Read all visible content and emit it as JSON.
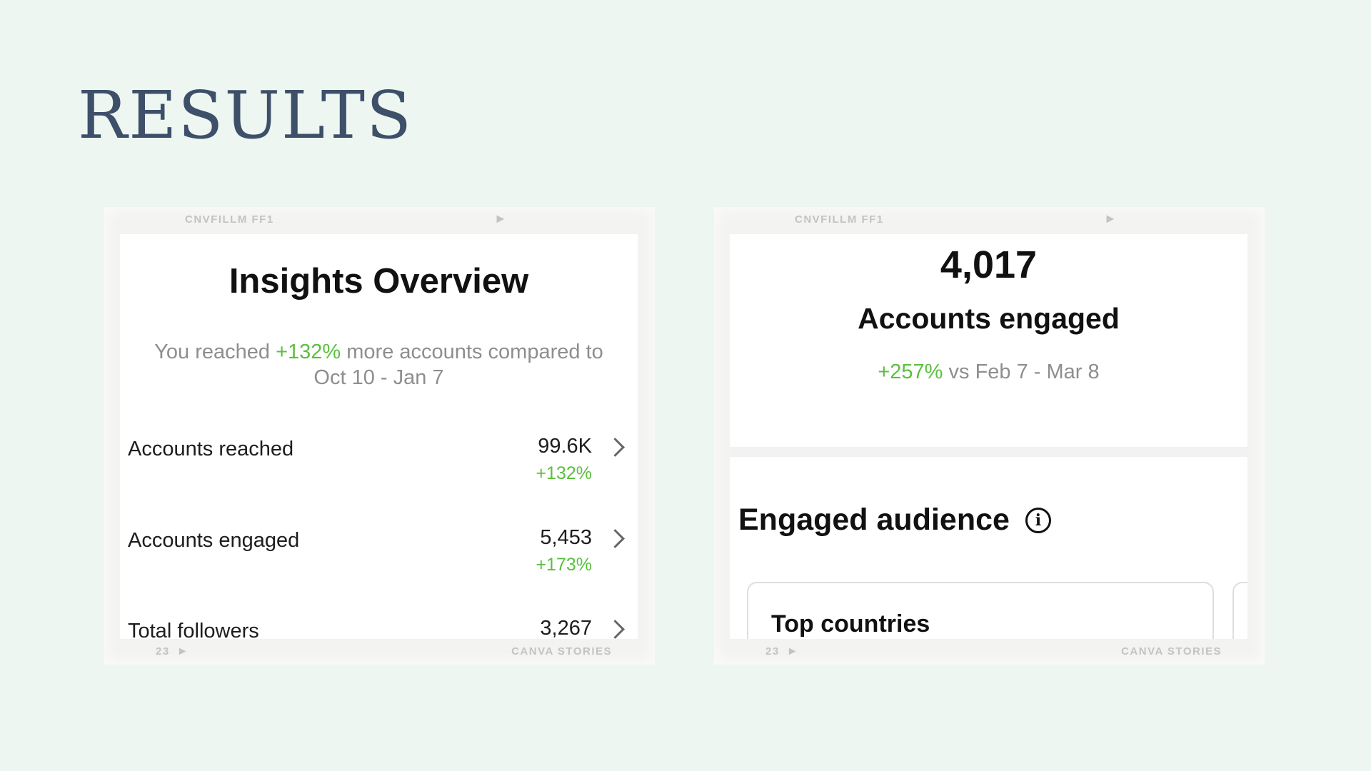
{
  "slide": {
    "title": "RESULTS"
  },
  "film": {
    "top_code": "CNVFILLM FF1",
    "frame_number": "23",
    "bottom_brand": "CANVA STORIES"
  },
  "left_card": {
    "title": "Insights Overview",
    "subtitle_prefix": "You reached ",
    "subtitle_highlight": "+132%",
    "subtitle_suffix": " more accounts compared to Oct 10 - Jan 7",
    "metrics": [
      {
        "label": "Accounts reached",
        "value": "99.6K",
        "delta": "+132%"
      },
      {
        "label": "Accounts engaged",
        "value": "5,453",
        "delta": "+173%"
      },
      {
        "label": "Total followers",
        "value": "3,267",
        "delta": ""
      }
    ]
  },
  "right_card": {
    "number": "4,017",
    "title": "Accounts engaged",
    "compare_highlight": "+257%",
    "compare_suffix": " vs Feb 7 - Mar 8",
    "audience_title": "Engaged audience",
    "info_icon_glyph": "i",
    "countries_title": "Top countries"
  },
  "colors": {
    "background": "#edf6f1",
    "title": "#3d4f69",
    "positive": "#5bbf3e",
    "muted_text": "#8e8e8e"
  },
  "icons": [
    "chevron-right-icon",
    "info-icon",
    "film-arrow-icon"
  ]
}
